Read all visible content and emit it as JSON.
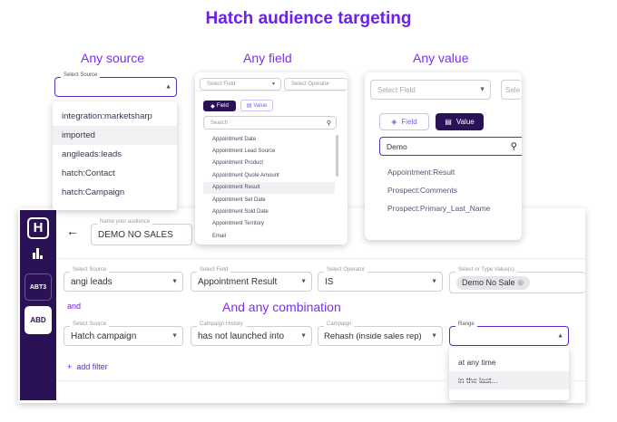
{
  "title": "Hatch audience targeting",
  "captions": {
    "source": "Any source",
    "field": "Any field",
    "value": "Any value",
    "combination": "And any combination"
  },
  "source_panel": {
    "label": "Select Source",
    "options": [
      "integration:marketsharp",
      "imported",
      "angileads:leads",
      "hatch:Contact",
      "hatch:Campaign"
    ],
    "hovered": "imported"
  },
  "field_panel": {
    "field_placeholder": "Select Field",
    "operator_placeholder": "Select Operator",
    "tab_field": "Field",
    "tab_value": "Value",
    "active_tab": "Field",
    "search_placeholder": "Search",
    "options": [
      "Appointment Date",
      "Appointment Lead Source",
      "Appointment Product",
      "Appointment Quote Amount",
      "Appointment Result",
      "Appointment Set Date",
      "Appointment Sold Date",
      "Appointment Territory",
      "Email"
    ],
    "hovered": "Appointment Result"
  },
  "value_panel": {
    "field_placeholder": "Select Field",
    "operator_placeholder": "Sele",
    "tab_field": "Field",
    "tab_value": "Value",
    "active_tab": "Value",
    "search_value": "Demo",
    "options": [
      "Appointment:Result",
      "Prospect:Comments",
      "Prospect:Primary_Last_Name"
    ]
  },
  "app": {
    "sidebar": {
      "items": [
        "ABT3",
        "ABD"
      ]
    },
    "audience": {
      "label": "Name your audience",
      "value": "DEMO NO SALES"
    },
    "row1": [
      {
        "label": "Select Source",
        "value": "angi leads"
      },
      {
        "label": "Select Field",
        "value": "Appointment Result"
      },
      {
        "label": "Select Operator",
        "value": "IS"
      },
      {
        "label": "Select or Type Value(s)",
        "chip": "Demo No Sale"
      }
    ],
    "and_label": "and",
    "row2": [
      {
        "label": "Select Source",
        "value": "Hatch campaign"
      },
      {
        "label": "Campaign History",
        "value": "has not launched into"
      },
      {
        "label": "Campaign",
        "value": "Rehash (inside sales rep)"
      },
      {
        "label": "Range",
        "value": ""
      }
    ],
    "range_options": [
      "at any time",
      "in the last..."
    ],
    "range_hovered": "in the last...",
    "add_filter": "add filter"
  },
  "colors": {
    "accent": "#6b21e8",
    "sidebar": "#2b1257",
    "button_dark": "#2b1257"
  }
}
